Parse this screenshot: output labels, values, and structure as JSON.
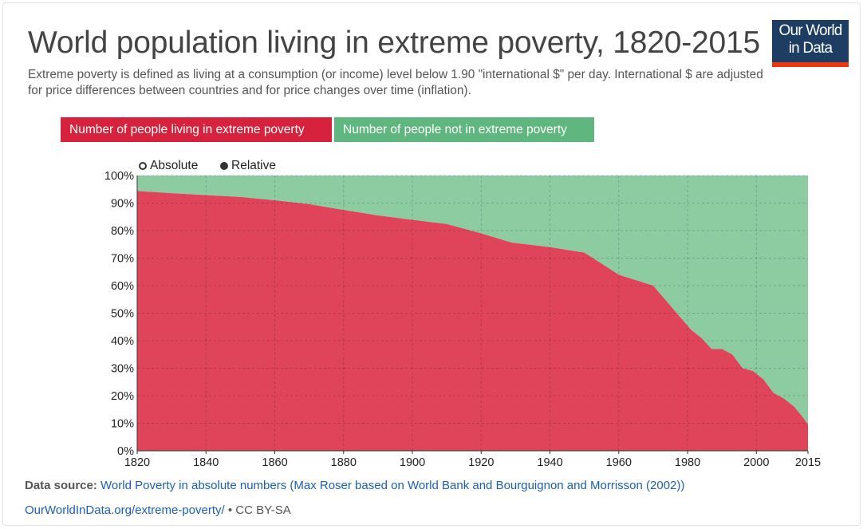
{
  "header": {
    "title": "World population living in extreme poverty, 1820-2015",
    "subtitle": "Extreme poverty is defined as living at a consumption (or income) level below 1.90 \"international $\" per day. International $ are adjusted for price differences between countries and for price changes over time (inflation).",
    "logo_line1": "Our World",
    "logo_line2": "in Data"
  },
  "legend": {
    "poverty_label": "Number of people living in extreme poverty",
    "non_poverty_label": "Number of people not in extreme poverty"
  },
  "toggles": {
    "absolute_label": "Absolute",
    "relative_label": "Relative",
    "selected": "Relative"
  },
  "colors": {
    "poverty": "#e0445a",
    "non_poverty": "#8dcba1",
    "legend_poverty": "#d7223d",
    "legend_non_poverty": "#5fb77f",
    "logo_bg": "#1d3d63",
    "logo_bar": "#e63912"
  },
  "chart_data": {
    "type": "area",
    "stacked": true,
    "normalized": true,
    "x": [
      1820,
      1830,
      1840,
      1850,
      1860,
      1870,
      1880,
      1890,
      1900,
      1910,
      1920,
      1929,
      1940,
      1950,
      1960,
      1970,
      1981,
      1984,
      1987,
      1990,
      1993,
      1996,
      1999,
      2002,
      2005,
      2008,
      2011,
      2013,
      2015
    ],
    "series": [
      {
        "name": "Number of people living in extreme poverty",
        "values": [
          94.4,
          93.6,
          92.9,
          92.2,
          91.0,
          89.6,
          87.5,
          85.5,
          83.9,
          82.4,
          79.0,
          75.6,
          74.0,
          72.0,
          64.0,
          60.0,
          44.0,
          41.0,
          37.0,
          37.0,
          35.0,
          30.0,
          29.0,
          26.0,
          21.0,
          19.0,
          16.0,
          13.0,
          9.6
        ]
      },
      {
        "name": "Number of people not in extreme poverty",
        "values": [
          5.6,
          6.4,
          7.1,
          7.8,
          9.0,
          10.4,
          12.5,
          14.5,
          16.1,
          17.6,
          21.0,
          24.4,
          26.0,
          28.0,
          36.0,
          40.0,
          56.0,
          59.0,
          63.0,
          63.0,
          65.0,
          70.0,
          71.0,
          74.0,
          79.0,
          81.0,
          84.0,
          87.0,
          90.4
        ]
      }
    ],
    "xlim": [
      1820,
      2015
    ],
    "ylim": [
      0,
      100
    ],
    "x_ticks": [
      "1820",
      "1840",
      "1860",
      "1880",
      "1900",
      "1920",
      "1940",
      "1960",
      "1980",
      "2000",
      "2015"
    ],
    "y_ticks": [
      "0%",
      "10%",
      "20%",
      "30%",
      "40%",
      "50%",
      "60%",
      "70%",
      "80%",
      "90%",
      "100%"
    ],
    "grid": true
  },
  "footer": {
    "source_prefix": "Data source:",
    "source_text": "World Poverty in absolute numbers (Max Roser based on World Bank and Bourguignon and Morrisson (2002))",
    "url": "OurWorldInData.org/extreme-poverty/",
    "separator": " • ",
    "license": "CC BY-SA"
  }
}
